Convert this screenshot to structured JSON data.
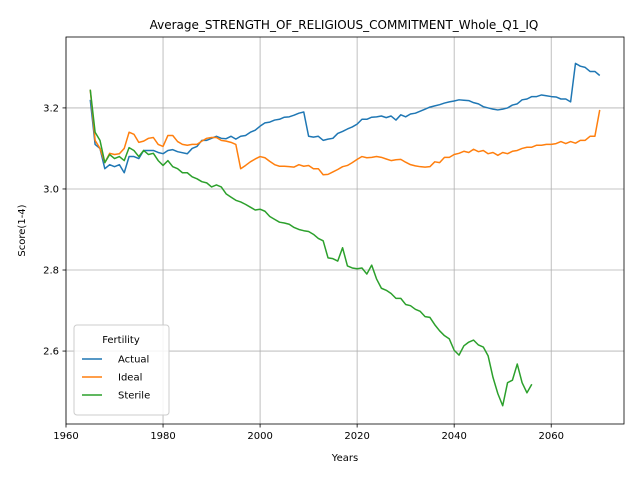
{
  "chart_data": {
    "type": "line",
    "title": "Average_STRENGTH_OF_RELIGIOUS_COMMITMENT_Whole_Q1_IQ",
    "xlabel": "Years",
    "ylabel": "Score(1-4)",
    "xlim": [
      1960,
      2075
    ],
    "ylim": [
      2.42,
      3.375
    ],
    "xticks": [
      1960,
      1980,
      2000,
      2020,
      2040,
      2060
    ],
    "yticks": [
      2.6,
      2.8,
      3.0,
      3.2
    ],
    "ytick_labels": [
      "2.6",
      "2.8",
      "3.0",
      "3.2"
    ],
    "grid": true,
    "legend": {
      "title": "Fertility",
      "placement": "lower-left"
    },
    "series": [
      {
        "name": "Actual",
        "color": "#1f77b4",
        "points": [
          [
            1965,
            3.22
          ],
          [
            1966,
            3.11
          ],
          [
            1967,
            3.1
          ],
          [
            1968,
            3.05
          ],
          [
            1969,
            3.06
          ],
          [
            1970,
            3.055
          ],
          [
            1971,
            3.06
          ],
          [
            1972,
            3.04
          ],
          [
            1973,
            3.08
          ],
          [
            1974,
            3.08
          ],
          [
            1975,
            3.075
          ],
          [
            1976,
            3.095
          ],
          [
            1978,
            3.095
          ],
          [
            1979,
            3.09
          ],
          [
            1980,
            3.087
          ],
          [
            1981,
            3.095
          ],
          [
            1982,
            3.097
          ],
          [
            1983,
            3.092
          ],
          [
            1985,
            3.087
          ],
          [
            1986,
            3.1
          ],
          [
            1987,
            3.105
          ],
          [
            1988,
            3.12
          ],
          [
            1989,
            3.12
          ],
          [
            1990,
            3.125
          ],
          [
            1991,
            3.13
          ],
          [
            1992,
            3.125
          ],
          [
            1993,
            3.124
          ],
          [
            1994,
            3.13
          ],
          [
            1995,
            3.123
          ],
          [
            1996,
            3.13
          ],
          [
            1997,
            3.132
          ],
          [
            1998,
            3.14
          ],
          [
            1999,
            3.145
          ],
          [
            2000,
            3.155
          ],
          [
            2001,
            3.163
          ],
          [
            2002,
            3.165
          ],
          [
            2003,
            3.17
          ],
          [
            2004,
            3.172
          ],
          [
            2005,
            3.177
          ],
          [
            2006,
            3.178
          ],
          [
            2007,
            3.182
          ],
          [
            2008,
            3.187
          ],
          [
            2009,
            3.19
          ],
          [
            2010,
            3.13
          ],
          [
            2011,
            3.128
          ],
          [
            2012,
            3.13
          ],
          [
            2013,
            3.12
          ],
          [
            2014,
            3.123
          ],
          [
            2015,
            3.125
          ],
          [
            2016,
            3.137
          ],
          [
            2017,
            3.142
          ],
          [
            2018,
            3.148
          ],
          [
            2019,
            3.153
          ],
          [
            2020,
            3.16
          ],
          [
            2021,
            3.172
          ],
          [
            2022,
            3.172
          ],
          [
            2023,
            3.177
          ],
          [
            2024,
            3.178
          ],
          [
            2025,
            3.18
          ],
          [
            2026,
            3.176
          ],
          [
            2027,
            3.18
          ],
          [
            2028,
            3.17
          ],
          [
            2029,
            3.183
          ],
          [
            2030,
            3.178
          ],
          [
            2031,
            3.185
          ],
          [
            2032,
            3.187
          ],
          [
            2033,
            3.192
          ],
          [
            2034,
            3.197
          ],
          [
            2035,
            3.202
          ],
          [
            2036,
            3.205
          ],
          [
            2037,
            3.208
          ],
          [
            2038,
            3.212
          ],
          [
            2039,
            3.215
          ],
          [
            2040,
            3.217
          ],
          [
            2041,
            3.22
          ],
          [
            2042,
            3.219
          ],
          [
            2043,
            3.218
          ],
          [
            2044,
            3.213
          ],
          [
            2045,
            3.21
          ],
          [
            2046,
            3.203
          ],
          [
            2047,
            3.2
          ],
          [
            2048,
            3.197
          ],
          [
            2049,
            3.195
          ],
          [
            2050,
            3.197
          ],
          [
            2051,
            3.2
          ],
          [
            2052,
            3.207
          ],
          [
            2053,
            3.21
          ],
          [
            2054,
            3.22
          ],
          [
            2055,
            3.222
          ],
          [
            2056,
            3.228
          ],
          [
            2057,
            3.228
          ],
          [
            2058,
            3.232
          ],
          [
            2059,
            3.23
          ],
          [
            2060,
            3.228
          ],
          [
            2061,
            3.227
          ],
          [
            2062,
            3.222
          ],
          [
            2063,
            3.222
          ],
          [
            2064,
            3.215
          ],
          [
            2065,
            3.31
          ],
          [
            2066,
            3.303
          ],
          [
            2067,
            3.3
          ],
          [
            2068,
            3.29
          ],
          [
            2069,
            3.29
          ],
          [
            2070,
            3.28
          ]
        ]
      },
      {
        "name": "Ideal",
        "color": "#ff7f0e",
        "points": [
          [
            1965,
            3.245
          ],
          [
            1966,
            3.12
          ],
          [
            1967,
            3.1
          ],
          [
            1968,
            3.065
          ],
          [
            1969,
            3.088
          ],
          [
            1970,
            3.085
          ],
          [
            1971,
            3.087
          ],
          [
            1972,
            3.1
          ],
          [
            1973,
            3.14
          ],
          [
            1974,
            3.135
          ],
          [
            1975,
            3.115
          ],
          [
            1976,
            3.118
          ],
          [
            1977,
            3.125
          ],
          [
            1978,
            3.127
          ],
          [
            1979,
            3.11
          ],
          [
            1980,
            3.105
          ],
          [
            1981,
            3.132
          ],
          [
            1982,
            3.132
          ],
          [
            1983,
            3.117
          ],
          [
            1984,
            3.11
          ],
          [
            1985,
            3.108
          ],
          [
            1986,
            3.11
          ],
          [
            1987,
            3.11
          ],
          [
            1988,
            3.118
          ],
          [
            1989,
            3.125
          ],
          [
            1990,
            3.127
          ],
          [
            1991,
            3.127
          ],
          [
            1992,
            3.12
          ],
          [
            1993,
            3.118
          ],
          [
            1994,
            3.115
          ],
          [
            1995,
            3.11
          ],
          [
            1996,
            3.05
          ],
          [
            1997,
            3.058
          ],
          [
            1998,
            3.067
          ],
          [
            1999,
            3.074
          ],
          [
            2000,
            3.08
          ],
          [
            2001,
            3.077
          ],
          [
            2002,
            3.068
          ],
          [
            2003,
            3.06
          ],
          [
            2004,
            3.056
          ],
          [
            2005,
            3.056
          ],
          [
            2006,
            3.055
          ],
          [
            2007,
            3.054
          ],
          [
            2008,
            3.06
          ],
          [
            2009,
            3.056
          ],
          [
            2010,
            3.058
          ],
          [
            2011,
            3.05
          ],
          [
            2012,
            3.05
          ],
          [
            2013,
            3.035
          ],
          [
            2014,
            3.036
          ],
          [
            2015,
            3.042
          ],
          [
            2016,
            3.048
          ],
          [
            2017,
            3.055
          ],
          [
            2018,
            3.058
          ],
          [
            2019,
            3.065
          ],
          [
            2020,
            3.073
          ],
          [
            2021,
            3.08
          ],
          [
            2022,
            3.077
          ],
          [
            2023,
            3.078
          ],
          [
            2024,
            3.08
          ],
          [
            2025,
            3.078
          ],
          [
            2026,
            3.074
          ],
          [
            2027,
            3.07
          ],
          [
            2028,
            3.072
          ],
          [
            2029,
            3.073
          ],
          [
            2030,
            3.066
          ],
          [
            2031,
            3.06
          ],
          [
            2032,
            3.057
          ],
          [
            2033,
            3.055
          ],
          [
            2034,
            3.054
          ],
          [
            2035,
            3.055
          ],
          [
            2036,
            3.067
          ],
          [
            2037,
            3.065
          ],
          [
            2038,
            3.078
          ],
          [
            2039,
            3.078
          ],
          [
            2040,
            3.085
          ],
          [
            2041,
            3.088
          ],
          [
            2042,
            3.093
          ],
          [
            2043,
            3.09
          ],
          [
            2044,
            3.098
          ],
          [
            2045,
            3.092
          ],
          [
            2046,
            3.095
          ],
          [
            2047,
            3.087
          ],
          [
            2048,
            3.09
          ],
          [
            2049,
            3.083
          ],
          [
            2050,
            3.09
          ],
          [
            2051,
            3.087
          ],
          [
            2052,
            3.093
          ],
          [
            2053,
            3.095
          ],
          [
            2054,
            3.1
          ],
          [
            2055,
            3.103
          ],
          [
            2056,
            3.103
          ],
          [
            2057,
            3.108
          ],
          [
            2058,
            3.108
          ],
          [
            2059,
            3.11
          ],
          [
            2060,
            3.11
          ],
          [
            2061,
            3.112
          ],
          [
            2062,
            3.117
          ],
          [
            2063,
            3.112
          ],
          [
            2064,
            3.117
          ],
          [
            2065,
            3.113
          ],
          [
            2066,
            3.12
          ],
          [
            2067,
            3.12
          ],
          [
            2068,
            3.13
          ],
          [
            2069,
            3.13
          ],
          [
            2070,
            3.195
          ]
        ]
      },
      {
        "name": "Sterile",
        "color": "#2ca02c",
        "points": [
          [
            1965,
            3.245
          ],
          [
            1966,
            3.14
          ],
          [
            1967,
            3.12
          ],
          [
            1968,
            3.065
          ],
          [
            1969,
            3.085
          ],
          [
            1970,
            3.075
          ],
          [
            1971,
            3.08
          ],
          [
            1972,
            3.07
          ],
          [
            1973,
            3.102
          ],
          [
            1974,
            3.095
          ],
          [
            1975,
            3.08
          ],
          [
            1976,
            3.095
          ],
          [
            1977,
            3.085
          ],
          [
            1978,
            3.088
          ],
          [
            1979,
            3.07
          ],
          [
            1980,
            3.058
          ],
          [
            1981,
            3.07
          ],
          [
            1982,
            3.055
          ],
          [
            1983,
            3.05
          ],
          [
            1984,
            3.04
          ],
          [
            1985,
            3.04
          ],
          [
            1986,
            3.03
          ],
          [
            1987,
            3.025
          ],
          [
            1988,
            3.018
          ],
          [
            1989,
            3.015
          ],
          [
            1990,
            3.005
          ],
          [
            1991,
            3.01
          ],
          [
            1992,
            3.005
          ],
          [
            1993,
            2.988
          ],
          [
            1994,
            2.98
          ],
          [
            1995,
            2.972
          ],
          [
            1996,
            2.968
          ],
          [
            1997,
            2.962
          ],
          [
            1998,
            2.955
          ],
          [
            1999,
            2.948
          ],
          [
            2000,
            2.95
          ],
          [
            2001,
            2.945
          ],
          [
            2002,
            2.932
          ],
          [
            2003,
            2.925
          ],
          [
            2004,
            2.918
          ],
          [
            2005,
            2.916
          ],
          [
            2006,
            2.913
          ],
          [
            2007,
            2.905
          ],
          [
            2008,
            2.9
          ],
          [
            2009,
            2.897
          ],
          [
            2010,
            2.895
          ],
          [
            2011,
            2.888
          ],
          [
            2012,
            2.878
          ],
          [
            2013,
            2.872
          ],
          [
            2014,
            2.83
          ],
          [
            2015,
            2.828
          ],
          [
            2016,
            2.822
          ],
          [
            2017,
            2.855
          ],
          [
            2018,
            2.81
          ],
          [
            2019,
            2.805
          ],
          [
            2020,
            2.803
          ],
          [
            2021,
            2.805
          ],
          [
            2022,
            2.79
          ],
          [
            2023,
            2.812
          ],
          [
            2024,
            2.778
          ],
          [
            2025,
            2.755
          ],
          [
            2026,
            2.75
          ],
          [
            2027,
            2.742
          ],
          [
            2028,
            2.73
          ],
          [
            2029,
            2.73
          ],
          [
            2030,
            2.715
          ],
          [
            2031,
            2.712
          ],
          [
            2032,
            2.703
          ],
          [
            2033,
            2.698
          ],
          [
            2034,
            2.685
          ],
          [
            2035,
            2.683
          ],
          [
            2036,
            2.665
          ],
          [
            2037,
            2.65
          ],
          [
            2038,
            2.638
          ],
          [
            2039,
            2.63
          ],
          [
            2040,
            2.602
          ],
          [
            2041,
            2.59
          ],
          [
            2042,
            2.613
          ],
          [
            2043,
            2.622
          ],
          [
            2044,
            2.627
          ],
          [
            2045,
            2.615
          ],
          [
            2046,
            2.61
          ],
          [
            2047,
            2.588
          ],
          [
            2048,
            2.535
          ],
          [
            2049,
            2.495
          ],
          [
            2050,
            2.465
          ],
          [
            2051,
            2.522
          ],
          [
            2052,
            2.528
          ],
          [
            2053,
            2.568
          ],
          [
            2054,
            2.522
          ],
          [
            2055,
            2.497
          ],
          [
            2056,
            2.518
          ]
        ]
      }
    ]
  }
}
